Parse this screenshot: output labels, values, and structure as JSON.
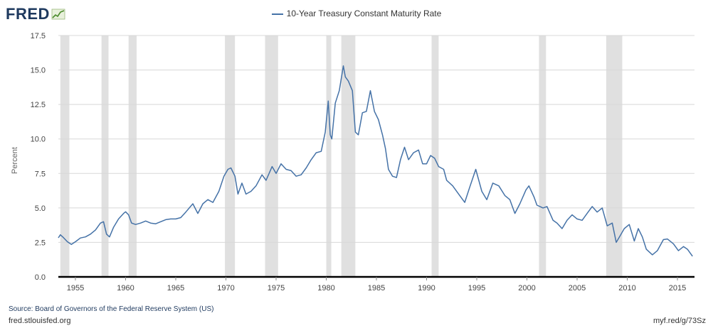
{
  "header": {
    "logo_text": "FRED",
    "legend_label": "10-Year Treasury Constant Maturity Rate"
  },
  "footer": {
    "source": "Source: Board of Governors of the Federal Reserve System (US)",
    "site": "fred.stlouisfed.org",
    "shortlink": "myf.red/g/73Sz"
  },
  "colors": {
    "series": "#4572a7",
    "recession": "#e0e0e0",
    "grid": "#d8d8d8",
    "axis": "#000000"
  },
  "chart_data": {
    "type": "line",
    "title": "",
    "xlabel": "",
    "ylabel": "Percent",
    "xlim": [
      1953.3,
      2016.7
    ],
    "ylim": [
      0,
      17.5
    ],
    "grid": true,
    "legend": "top-center",
    "x_ticks": [
      1955,
      1960,
      1965,
      1970,
      1975,
      1980,
      1985,
      1990,
      1995,
      2000,
      2005,
      2010,
      2015
    ],
    "y_ticks": [
      0.0,
      2.5,
      5.0,
      7.5,
      10.0,
      12.5,
      15.0,
      17.5
    ],
    "y_tick_labels": [
      "0.0",
      "2.5",
      "5.0",
      "7.5",
      "10.0",
      "12.5",
      "15.0",
      "17.5"
    ],
    "recessions": [
      [
        1953.5,
        1954.4
      ],
      [
        1957.6,
        1958.3
      ],
      [
        1960.3,
        1961.1
      ],
      [
        1969.9,
        1970.9
      ],
      [
        1973.9,
        1975.2
      ],
      [
        1980.0,
        1980.5
      ],
      [
        1981.5,
        1982.9
      ],
      [
        1990.5,
        1991.2
      ],
      [
        2001.2,
        2001.9
      ],
      [
        2007.9,
        2009.5
      ]
    ],
    "series": [
      {
        "name": "10-Year Treasury Constant Maturity Rate",
        "points": [
          [
            1953.3,
            2.83
          ],
          [
            1953.5,
            3.05
          ],
          [
            1953.8,
            2.85
          ],
          [
            1954.2,
            2.55
          ],
          [
            1954.6,
            2.35
          ],
          [
            1955.0,
            2.55
          ],
          [
            1955.5,
            2.82
          ],
          [
            1956.0,
            2.9
          ],
          [
            1956.5,
            3.1
          ],
          [
            1957.0,
            3.4
          ],
          [
            1957.5,
            3.9
          ],
          [
            1957.8,
            4.0
          ],
          [
            1958.1,
            3.1
          ],
          [
            1958.4,
            2.9
          ],
          [
            1958.8,
            3.6
          ],
          [
            1959.3,
            4.2
          ],
          [
            1959.8,
            4.6
          ],
          [
            1960.0,
            4.72
          ],
          [
            1960.3,
            4.5
          ],
          [
            1960.6,
            3.9
          ],
          [
            1961.0,
            3.8
          ],
          [
            1961.5,
            3.9
          ],
          [
            1962.0,
            4.05
          ],
          [
            1962.5,
            3.9
          ],
          [
            1963.0,
            3.85
          ],
          [
            1963.5,
            4.0
          ],
          [
            1964.0,
            4.15
          ],
          [
            1964.5,
            4.2
          ],
          [
            1965.0,
            4.2
          ],
          [
            1965.5,
            4.3
          ],
          [
            1966.0,
            4.7
          ],
          [
            1966.7,
            5.3
          ],
          [
            1967.2,
            4.6
          ],
          [
            1967.7,
            5.3
          ],
          [
            1968.2,
            5.6
          ],
          [
            1968.7,
            5.4
          ],
          [
            1969.3,
            6.2
          ],
          [
            1969.8,
            7.3
          ],
          [
            1970.2,
            7.8
          ],
          [
            1970.5,
            7.9
          ],
          [
            1970.9,
            7.3
          ],
          [
            1971.2,
            6.0
          ],
          [
            1971.6,
            6.8
          ],
          [
            1972.0,
            6.0
          ],
          [
            1972.5,
            6.2
          ],
          [
            1973.0,
            6.6
          ],
          [
            1973.6,
            7.4
          ],
          [
            1974.0,
            7.0
          ],
          [
            1974.6,
            8.0
          ],
          [
            1975.0,
            7.5
          ],
          [
            1975.5,
            8.2
          ],
          [
            1976.0,
            7.8
          ],
          [
            1976.5,
            7.7
          ],
          [
            1977.0,
            7.3
          ],
          [
            1977.5,
            7.4
          ],
          [
            1978.0,
            7.9
          ],
          [
            1978.5,
            8.5
          ],
          [
            1979.0,
            9.0
          ],
          [
            1979.5,
            9.1
          ],
          [
            1979.9,
            10.5
          ],
          [
            1980.2,
            12.75
          ],
          [
            1980.4,
            10.3
          ],
          [
            1980.55,
            10.0
          ],
          [
            1980.9,
            12.6
          ],
          [
            1981.3,
            13.5
          ],
          [
            1981.7,
            15.3
          ],
          [
            1981.9,
            14.5
          ],
          [
            1982.2,
            14.2
          ],
          [
            1982.6,
            13.5
          ],
          [
            1982.9,
            10.5
          ],
          [
            1983.2,
            10.3
          ],
          [
            1983.6,
            11.9
          ],
          [
            1984.0,
            12.0
          ],
          [
            1984.4,
            13.5
          ],
          [
            1984.8,
            12.0
          ],
          [
            1985.2,
            11.4
          ],
          [
            1985.6,
            10.3
          ],
          [
            1985.9,
            9.3
          ],
          [
            1986.2,
            7.8
          ],
          [
            1986.6,
            7.3
          ],
          [
            1987.0,
            7.2
          ],
          [
            1987.4,
            8.5
          ],
          [
            1987.8,
            9.4
          ],
          [
            1988.2,
            8.5
          ],
          [
            1988.7,
            9.0
          ],
          [
            1989.2,
            9.2
          ],
          [
            1989.6,
            8.2
          ],
          [
            1990.0,
            8.2
          ],
          [
            1990.4,
            8.8
          ],
          [
            1990.8,
            8.6
          ],
          [
            1991.2,
            8.0
          ],
          [
            1991.7,
            7.8
          ],
          [
            1992.0,
            7.0
          ],
          [
            1992.6,
            6.6
          ],
          [
            1993.2,
            6.0
          ],
          [
            1993.8,
            5.4
          ],
          [
            1994.3,
            6.5
          ],
          [
            1994.9,
            7.8
          ],
          [
            1995.5,
            6.2
          ],
          [
            1996.0,
            5.6
          ],
          [
            1996.6,
            6.8
          ],
          [
            1997.2,
            6.6
          ],
          [
            1997.8,
            5.9
          ],
          [
            1998.3,
            5.6
          ],
          [
            1998.8,
            4.6
          ],
          [
            1999.3,
            5.3
          ],
          [
            1999.9,
            6.3
          ],
          [
            2000.2,
            6.6
          ],
          [
            2000.7,
            5.8
          ],
          [
            2001.0,
            5.2
          ],
          [
            2001.6,
            5.0
          ],
          [
            2002.0,
            5.1
          ],
          [
            2002.6,
            4.1
          ],
          [
            2003.0,
            3.9
          ],
          [
            2003.5,
            3.5
          ],
          [
            2004.0,
            4.1
          ],
          [
            2004.5,
            4.5
          ],
          [
            2005.0,
            4.2
          ],
          [
            2005.5,
            4.1
          ],
          [
            2006.0,
            4.6
          ],
          [
            2006.5,
            5.1
          ],
          [
            2007.0,
            4.7
          ],
          [
            2007.5,
            5.0
          ],
          [
            2008.0,
            3.7
          ],
          [
            2008.5,
            3.9
          ],
          [
            2008.9,
            2.5
          ],
          [
            2009.3,
            3.0
          ],
          [
            2009.7,
            3.5
          ],
          [
            2010.2,
            3.8
          ],
          [
            2010.7,
            2.6
          ],
          [
            2011.1,
            3.5
          ],
          [
            2011.5,
            2.9
          ],
          [
            2011.9,
            2.0
          ],
          [
            2012.5,
            1.6
          ],
          [
            2013.0,
            1.9
          ],
          [
            2013.6,
            2.7
          ],
          [
            2014.0,
            2.75
          ],
          [
            2014.6,
            2.4
          ],
          [
            2015.1,
            1.9
          ],
          [
            2015.6,
            2.2
          ],
          [
            2016.0,
            2.0
          ],
          [
            2016.5,
            1.5
          ]
        ]
      }
    ]
  }
}
